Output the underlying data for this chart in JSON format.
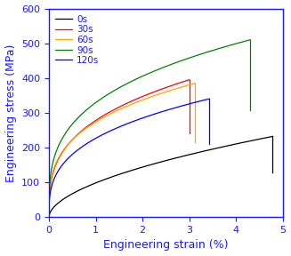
{
  "title": "",
  "xlabel": "Engineering strain (%)",
  "ylabel": "Engineering stress (MPa)",
  "xlim": [
    0,
    5
  ],
  "ylim": [
    0,
    600
  ],
  "xticks": [
    0,
    1,
    2,
    3,
    4,
    5
  ],
  "yticks": [
    0,
    100,
    200,
    300,
    400,
    500,
    600
  ],
  "series": [
    {
      "label": "0s",
      "color": "black",
      "x_end": 4.78,
      "y_peak": 232,
      "power": 0.55,
      "y_bottom": 128
    },
    {
      "label": "30s",
      "color": "red",
      "x_end": 3.0,
      "y_peak": 395,
      "power": 0.32,
      "y_bottom": 240
    },
    {
      "label": "60s",
      "color": "orange",
      "x_end": 3.12,
      "y_peak": 385,
      "power": 0.3,
      "y_bottom": 215
    },
    {
      "label": "90s",
      "color": "green",
      "x_end": 4.3,
      "y_peak": 510,
      "power": 0.3,
      "y_bottom": 308
    },
    {
      "label": "120s",
      "color": "blue",
      "x_end": 3.42,
      "y_peak": 340,
      "power": 0.33,
      "y_bottom": 210
    }
  ],
  "legend_fontsize": 7.5,
  "tick_labelsize": 8,
  "label_fontsize": 9,
  "figsize": [
    3.27,
    2.88
  ],
  "dpi": 100
}
